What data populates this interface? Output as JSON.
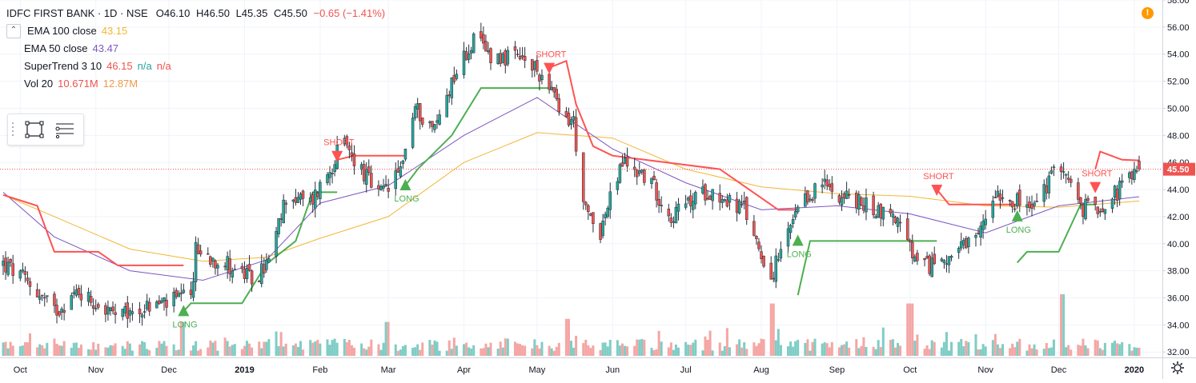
{
  "header": {
    "title": "IDFC FIRST BANK · 1D · NSE",
    "open": "O46.10",
    "high": "H46.50",
    "low": "L45.35",
    "close": "C45.50",
    "change": "−0.65 (−1.41%)"
  },
  "indicators": [
    {
      "name": "EMA 100 close",
      "values": [
        "43.15"
      ],
      "colors": [
        "#f2b733"
      ]
    },
    {
      "name": "EMA 50 close",
      "values": [
        "43.47"
      ],
      "colors": [
        "#7e57c2"
      ]
    },
    {
      "name": "SuperTrend 3 10",
      "values": [
        "46.15",
        "n/a",
        "n/a"
      ],
      "colors": [
        "#ef5350",
        "#26a69a",
        "#ef5350"
      ]
    },
    {
      "name": "Vol 20",
      "values": [
        "10.671M",
        "12.87M"
      ],
      "colors": [
        "#ef5350",
        "#f2994a"
      ]
    }
  ],
  "icons": {
    "collapse": "chevron-up-icon",
    "rectangle_tool": "rectangle-icon",
    "lines_tool": "horizontal-lines-icon",
    "alert": "exclamation-icon",
    "settings": "gear-icon"
  },
  "colors": {
    "up": "#26a69a",
    "down": "#ef5350",
    "ema100": "#f2b733",
    "ema50": "#7e57c2",
    "st_up": "#4caf50",
    "st_down": "#ff5252",
    "vol_up": "#7fcdc5",
    "vol_down": "#f4a6a4",
    "price_tag": "#ef5350"
  },
  "alert_glyph": "!",
  "chart_data": {
    "type": "candlestick",
    "title": "IDFC FIRST BANK · 1D · NSE",
    "y_axis": {
      "range": [
        31.6,
        58.0
      ],
      "ticks": [
        "32.00",
        "34.00",
        "36.00",
        "38.00",
        "40.00",
        "42.00",
        "44.00",
        "46.00",
        "48.00",
        "50.00",
        "52.00",
        "54.00",
        "56.00",
        "58.00"
      ],
      "last_price_label": "45.50",
      "last_price": 45.5
    },
    "x_axis": {
      "labels": [
        "Oct",
        "Nov",
        "Dec",
        "2019",
        "Feb",
        "Mar",
        "Apr",
        "May",
        "Jun",
        "Jul",
        "Aug",
        "Sep",
        "Oct",
        "Nov",
        "Dec",
        "2020"
      ],
      "label_dates": [
        "2018-10-01",
        "2018-11-01",
        "2018-12-01",
        "2019-01-01",
        "2019-02-01",
        "2019-03-01",
        "2019-04-01",
        "2019-05-01",
        "2019-06-01",
        "2019-07-01",
        "2019-08-01",
        "2019-09-01",
        "2019-10-01",
        "2019-11-01",
        "2019-12-01",
        "2020-01-01"
      ]
    },
    "series": [
      {
        "name": "EMA 100 close",
        "type": "line",
        "points": [
          [
            "2018-09-24",
            43.6
          ],
          [
            "2018-10-15",
            42.0
          ],
          [
            "2018-11-15",
            39.6
          ],
          [
            "2018-12-15",
            38.7
          ],
          [
            "2019-01-10",
            39.0
          ],
          [
            "2019-02-01",
            40.4
          ],
          [
            "2019-03-01",
            42.0
          ],
          [
            "2019-04-01",
            46.0
          ],
          [
            "2019-05-01",
            48.2
          ],
          [
            "2019-06-01",
            47.8
          ],
          [
            "2019-07-01",
            45.5
          ],
          [
            "2019-08-01",
            44.2
          ],
          [
            "2019-09-01",
            43.7
          ],
          [
            "2019-10-01",
            43.5
          ],
          [
            "2019-11-01",
            42.8
          ],
          [
            "2019-12-01",
            42.7
          ],
          [
            "2020-01-03",
            43.15
          ]
        ]
      },
      {
        "name": "EMA 50 close",
        "type": "line",
        "points": [
          [
            "2018-09-24",
            43.8
          ],
          [
            "2018-10-15",
            40.5
          ],
          [
            "2018-11-15",
            38.0
          ],
          [
            "2018-12-15",
            37.3
          ],
          [
            "2019-01-10",
            38.8
          ],
          [
            "2019-02-01",
            43.0
          ],
          [
            "2019-03-01",
            44.3
          ],
          [
            "2019-04-01",
            48.0
          ],
          [
            "2019-05-01",
            50.8
          ],
          [
            "2019-06-01",
            47.0
          ],
          [
            "2019-07-01",
            44.5
          ],
          [
            "2019-08-01",
            42.5
          ],
          [
            "2019-09-01",
            42.8
          ],
          [
            "2019-10-01",
            42.2
          ],
          [
            "2019-11-01",
            40.8
          ],
          [
            "2019-12-01",
            42.8
          ],
          [
            "2020-01-03",
            43.47
          ]
        ]
      },
      {
        "name": "SuperTrend 3 10",
        "type": "step",
        "segments": [
          {
            "trend": "down",
            "points": [
              [
                "2018-09-24",
                43.6
              ],
              [
                "2018-10-08",
                42.8
              ],
              [
                "2018-10-15",
                39.4
              ],
              [
                "2018-11-02",
                39.4
              ],
              [
                "2018-11-10",
                38.4
              ],
              [
                "2018-12-07",
                38.4
              ]
            ]
          },
          {
            "trend": "up",
            "points": [
              [
                "2018-12-07",
                35.0
              ],
              [
                "2018-12-10",
                35.6
              ],
              [
                "2018-12-31",
                35.6
              ],
              [
                "2019-01-10",
                38.5
              ],
              [
                "2019-01-22",
                40.2
              ],
              [
                "2019-01-29",
                43.8
              ],
              [
                "2019-02-08",
                43.8
              ]
            ]
          },
          {
            "trend": "down",
            "points": [
              [
                "2019-02-08",
                46.2
              ],
              [
                "2019-02-15",
                46.5
              ],
              [
                "2019-03-08",
                46.5
              ]
            ]
          },
          {
            "trend": "up",
            "points": [
              [
                "2019-03-08",
                44.3
              ],
              [
                "2019-03-13",
                45.5
              ],
              [
                "2019-03-27",
                48.0
              ],
              [
                "2019-04-08",
                51.5
              ],
              [
                "2019-05-06",
                51.5
              ]
            ]
          },
          {
            "trend": "down",
            "points": [
              [
                "2019-05-06",
                53.0
              ],
              [
                "2019-05-13",
                53.5
              ],
              [
                "2019-05-17",
                50.3
              ],
              [
                "2019-05-24",
                47.2
              ],
              [
                "2019-06-01",
                46.5
              ],
              [
                "2019-07-15",
                45.5
              ],
              [
                "2019-08-08",
                42.5
              ],
              [
                "2019-08-16",
                42.5
              ]
            ]
          },
          {
            "trend": "up",
            "points": [
              [
                "2019-08-16",
                36.2
              ],
              [
                "2019-08-21",
                40.2
              ],
              [
                "2019-10-12",
                40.2
              ]
            ]
          },
          {
            "trend": "down",
            "points": [
              [
                "2019-10-12",
                44.0
              ],
              [
                "2019-10-17",
                42.9
              ],
              [
                "2019-11-14",
                42.9
              ]
            ]
          },
          {
            "trend": "up",
            "points": [
              [
                "2019-11-14",
                38.6
              ],
              [
                "2019-11-18",
                39.4
              ],
              [
                "2019-12-01",
                39.4
              ],
              [
                "2019-12-10",
                42.9
              ],
              [
                "2019-12-16",
                42.9
              ]
            ]
          },
          {
            "trend": "down",
            "points": [
              [
                "2019-12-16",
                45.5
              ],
              [
                "2019-12-18",
                46.8
              ],
              [
                "2019-12-27",
                46.2
              ],
              [
                "2020-01-03",
                46.15
              ]
            ]
          }
        ]
      }
    ],
    "candles_summary": {
      "start": "2018-09-24",
      "end": "2020-01-03",
      "path": [
        [
          "2018-09-24",
          38.5
        ],
        [
          "2018-10-05",
          37.0
        ],
        [
          "2018-10-15",
          35.0
        ],
        [
          "2018-10-25",
          36.5
        ],
        [
          "2018-11-10",
          34.5
        ],
        [
          "2018-11-25",
          35.5
        ],
        [
          "2018-12-10",
          36.0
        ],
        [
          "2018-12-12",
          39.5
        ],
        [
          "2018-12-25",
          38.5
        ],
        [
          "2019-01-05",
          37.2
        ],
        [
          "2019-01-12",
          39.0
        ],
        [
          "2019-01-18",
          43.5
        ],
        [
          "2019-01-28",
          43.0
        ],
        [
          "2019-02-05",
          45.5
        ],
        [
          "2019-02-10",
          47.5
        ],
        [
          "2019-02-18",
          45.5
        ],
        [
          "2019-02-25",
          43.5
        ],
        [
          "2019-03-05",
          45.0
        ],
        [
          "2019-03-12",
          50.0
        ],
        [
          "2019-03-20",
          48.5
        ],
        [
          "2019-03-28",
          52.5
        ],
        [
          "2019-04-05",
          55.0
        ],
        [
          "2019-04-12",
          54.0
        ],
        [
          "2019-04-25",
          53.5
        ],
        [
          "2019-05-06",
          52.0
        ],
        [
          "2019-05-10",
          49.5
        ],
        [
          "2019-05-16",
          49.0
        ],
        [
          "2019-05-20",
          42.5
        ],
        [
          "2019-05-27",
          41.0
        ],
        [
          "2019-06-05",
          46.0
        ],
        [
          "2019-06-15",
          45.0
        ],
        [
          "2019-06-25",
          42.0
        ],
        [
          "2019-07-10",
          44.0
        ],
        [
          "2019-07-25",
          42.5
        ],
        [
          "2019-08-05",
          37.5
        ],
        [
          "2019-08-15",
          42.0
        ],
        [
          "2019-08-25",
          44.5
        ],
        [
          "2019-09-10",
          43.0
        ],
        [
          "2019-09-25",
          42.0
        ],
        [
          "2019-10-05",
          38.0
        ],
        [
          "2019-10-15",
          39.0
        ],
        [
          "2019-10-28",
          40.0
        ],
        [
          "2019-11-05",
          44.0
        ],
        [
          "2019-11-20",
          42.5
        ],
        [
          "2019-12-02",
          46.0
        ],
        [
          "2019-12-10",
          42.5
        ],
        [
          "2019-12-20",
          43.0
        ],
        [
          "2020-01-03",
          45.5
        ]
      ]
    },
    "signals": [
      {
        "label": "SHORT",
        "date": "2019-02-08",
        "price": 46.5,
        "type": "sell"
      },
      {
        "label": "LONG",
        "date": "2018-12-07",
        "price": 35.0,
        "type": "buy"
      },
      {
        "label": "LONG",
        "date": "2019-03-08",
        "price": 44.3,
        "type": "buy"
      },
      {
        "label": "SHORT",
        "date": "2019-05-06",
        "price": 53.0,
        "type": "sell"
      },
      {
        "label": "LONG",
        "date": "2019-08-16",
        "price": 40.2,
        "type": "buy"
      },
      {
        "label": "SHORT",
        "date": "2019-10-12",
        "price": 44.0,
        "type": "sell"
      },
      {
        "label": "LONG",
        "date": "2019-11-14",
        "price": 42.0,
        "type": "buy"
      },
      {
        "label": "SHORT",
        "date": "2019-12-16",
        "price": 44.2,
        "type": "sell"
      }
    ],
    "volume_spikes": [
      [
        "2018-12-07",
        0.55
      ],
      [
        "2019-03-01",
        0.55
      ],
      [
        "2019-05-13",
        0.6
      ],
      [
        "2019-08-05",
        0.85
      ],
      [
        "2019-10-01",
        0.85
      ],
      [
        "2019-12-02",
        1.0
      ]
    ],
    "grid": true
  }
}
